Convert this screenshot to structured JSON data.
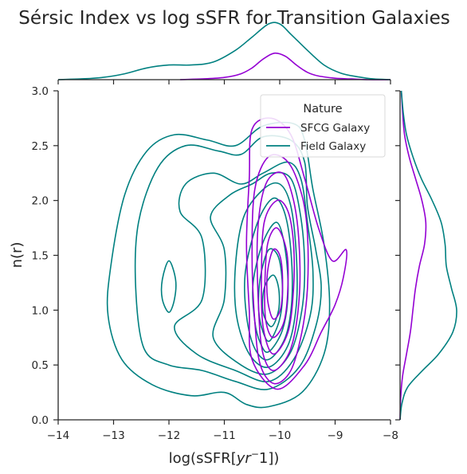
{
  "chart_data": {
    "type": "kde-contour-joint",
    "title": "Sérsic Index vs log sSFR for Transition Galaxies",
    "xlabel_parts": {
      "pre": "log(sSFR[",
      "italic": "yr",
      "sup": "−",
      "post": "1])"
    },
    "ylabel": "n(r)",
    "xlim": [
      -14,
      -8
    ],
    "ylim": [
      0,
      3
    ],
    "xticks": [
      -14,
      -13,
      -12,
      -11,
      -10,
      -9,
      -8
    ],
    "xtick_labels": [
      "−14",
      "−13",
      "−12",
      "−11",
      "−10",
      "−9",
      "−8"
    ],
    "yticks": [
      0.0,
      0.5,
      1.0,
      1.5,
      2.0,
      2.5,
      3.0
    ],
    "ytick_labels": [
      "0.0",
      "0.5",
      "1.0",
      "1.5",
      "2.0",
      "2.5",
      "3.0"
    ],
    "grid": false,
    "legend": {
      "title": "Nature",
      "placement": "top-right"
    },
    "colors": {
      "sfcg": "#9400d3",
      "field": "#008080",
      "axis": "#262626"
    },
    "series": [
      {
        "name": "SFCG Galaxy",
        "color": "#9400d3",
        "contours": [
          [
            [
              -10.05,
              0.28
            ],
            [
              -9.55,
              0.5
            ],
            [
              -9.25,
              0.8
            ],
            [
              -9.0,
              1.05
            ],
            [
              -8.85,
              1.3
            ],
            [
              -8.8,
              1.55
            ],
            [
              -9.05,
              1.45
            ],
            [
              -9.3,
              1.75
            ],
            [
              -9.55,
              2.2
            ],
            [
              -9.8,
              2.6
            ],
            [
              -10.15,
              2.75
            ],
            [
              -10.5,
              2.65
            ],
            [
              -10.55,
              2.2
            ],
            [
              -10.6,
              1.6
            ],
            [
              -10.55,
              1.0
            ],
            [
              -10.5,
              0.55
            ]
          ],
          [
            [
              -10.1,
              0.33
            ],
            [
              -9.8,
              0.45
            ],
            [
              -9.6,
              0.8
            ],
            [
              -9.5,
              1.2
            ],
            [
              -9.5,
              1.7
            ],
            [
              -9.6,
              2.05
            ],
            [
              -9.85,
              2.35
            ],
            [
              -10.2,
              2.4
            ],
            [
              -10.45,
              2.1
            ],
            [
              -10.5,
              1.5
            ],
            [
              -10.45,
              0.9
            ],
            [
              -10.35,
              0.5
            ]
          ],
          [
            [
              -10.1,
              0.45
            ],
            [
              -9.8,
              0.65
            ],
            [
              -9.65,
              1.1
            ],
            [
              -9.65,
              1.6
            ],
            [
              -9.75,
              2.0
            ],
            [
              -9.95,
              2.25
            ],
            [
              -10.25,
              2.15
            ],
            [
              -10.4,
              1.7
            ],
            [
              -10.38,
              1.0
            ],
            [
              -10.3,
              0.6
            ]
          ],
          [
            [
              -10.12,
              0.6
            ],
            [
              -9.85,
              0.8
            ],
            [
              -9.75,
              1.2
            ],
            [
              -9.75,
              1.6
            ],
            [
              -9.85,
              1.9
            ],
            [
              -10.05,
              2.0
            ],
            [
              -10.28,
              1.8
            ],
            [
              -10.33,
              1.3
            ],
            [
              -10.3,
              0.85
            ]
          ],
          [
            [
              -10.12,
              0.75
            ],
            [
              -9.92,
              0.9
            ],
            [
              -9.85,
              1.25
            ],
            [
              -9.88,
              1.55
            ],
            [
              -10.05,
              1.75
            ],
            [
              -10.22,
              1.6
            ],
            [
              -10.27,
              1.2
            ],
            [
              -10.25,
              0.9
            ]
          ],
          [
            [
              -10.12,
              0.92
            ],
            [
              -9.98,
              1.02
            ],
            [
              -9.95,
              1.3
            ],
            [
              -10.0,
              1.5
            ],
            [
              -10.12,
              1.55
            ],
            [
              -10.22,
              1.35
            ],
            [
              -10.22,
              1.1
            ]
          ]
        ]
      },
      {
        "name": "Field Galaxy",
        "color": "#008080",
        "contours": [
          [
            [
              -10.2,
              0.12
            ],
            [
              -9.6,
              0.25
            ],
            [
              -9.2,
              0.6
            ],
            [
              -9.1,
              1.05
            ],
            [
              -9.2,
              1.6
            ],
            [
              -9.4,
              2.1
            ],
            [
              -9.55,
              2.55
            ],
            [
              -9.75,
              2.7
            ],
            [
              -10.3,
              2.68
            ],
            [
              -10.8,
              2.5
            ],
            [
              -11.3,
              2.55
            ],
            [
              -11.9,
              2.6
            ],
            [
              -12.4,
              2.45
            ],
            [
              -12.8,
              2.05
            ],
            [
              -13.05,
              1.4
            ],
            [
              -13.1,
              0.95
            ],
            [
              -12.85,
              0.55
            ],
            [
              -12.3,
              0.32
            ],
            [
              -11.6,
              0.22
            ],
            [
              -11.0,
              0.25
            ],
            [
              -10.6,
              0.14
            ]
          ],
          [
            [
              -10.2,
              0.28
            ],
            [
              -9.65,
              0.48
            ],
            [
              -9.35,
              0.85
            ],
            [
              -9.25,
              1.2
            ],
            [
              -9.35,
              1.55
            ],
            [
              -9.5,
              1.95
            ],
            [
              -9.55,
              2.35
            ],
            [
              -9.8,
              2.55
            ],
            [
              -10.3,
              2.58
            ],
            [
              -10.7,
              2.42
            ],
            [
              -11.1,
              2.45
            ],
            [
              -11.7,
              2.5
            ],
            [
              -12.2,
              2.3
            ],
            [
              -12.55,
              1.8
            ],
            [
              -12.6,
              1.2
            ],
            [
              -12.45,
              0.65
            ],
            [
              -12.0,
              0.5
            ],
            [
              -11.4,
              0.45
            ],
            [
              -10.8,
              0.35
            ]
          ],
          [
            [
              -10.2,
              0.35
            ],
            [
              -9.75,
              0.55
            ],
            [
              -9.45,
              0.95
            ],
            [
              -9.4,
              1.35
            ],
            [
              -9.5,
              1.8
            ],
            [
              -9.62,
              2.2
            ],
            [
              -9.85,
              2.35
            ],
            [
              -10.3,
              2.25
            ],
            [
              -10.7,
              2.15
            ],
            [
              -11.2,
              2.25
            ],
            [
              -11.7,
              2.15
            ],
            [
              -11.8,
              1.9
            ],
            [
              -11.4,
              1.65
            ],
            [
              -11.4,
              1.1
            ],
            [
              -11.9,
              0.85
            ],
            [
              -11.5,
              0.6
            ],
            [
              -10.8,
              0.45
            ]
          ],
          [
            [
              -10.2,
              0.42
            ],
            [
              -9.8,
              0.62
            ],
            [
              -9.6,
              1.0
            ],
            [
              -9.55,
              1.4
            ],
            [
              -9.62,
              1.85
            ],
            [
              -9.8,
              2.2
            ],
            [
              -10.15,
              2.25
            ],
            [
              -10.5,
              2.15
            ],
            [
              -10.9,
              2.05
            ],
            [
              -11.25,
              1.85
            ],
            [
              -11.0,
              1.55
            ],
            [
              -11.0,
              1.1
            ],
            [
              -11.2,
              0.75
            ],
            [
              -10.7,
              0.5
            ]
          ],
          [
            [
              -10.2,
              0.48
            ],
            [
              -9.85,
              0.68
            ],
            [
              -9.7,
              1.05
            ],
            [
              -9.7,
              1.5
            ],
            [
              -9.8,
              1.95
            ],
            [
              -10.0,
              2.15
            ],
            [
              -10.3,
              2.1
            ],
            [
              -10.65,
              1.85
            ],
            [
              -10.8,
              1.4
            ],
            [
              -10.78,
              0.95
            ],
            [
              -10.55,
              0.6
            ]
          ],
          [
            [
              -10.2,
              0.55
            ],
            [
              -9.9,
              0.75
            ],
            [
              -9.78,
              1.1
            ],
            [
              -9.8,
              1.55
            ],
            [
              -9.92,
              1.9
            ],
            [
              -10.12,
              2.02
            ],
            [
              -10.4,
              1.8
            ],
            [
              -10.62,
              1.35
            ],
            [
              -10.6,
              0.95
            ],
            [
              -10.45,
              0.65
            ]
          ],
          [
            [
              -10.2,
              0.62
            ],
            [
              -9.95,
              0.82
            ],
            [
              -9.85,
              1.15
            ],
            [
              -9.9,
              1.55
            ],
            [
              -10.05,
              1.8
            ],
            [
              -10.3,
              1.62
            ],
            [
              -10.48,
              1.25
            ],
            [
              -10.45,
              0.9
            ],
            [
              -10.35,
              0.7
            ]
          ],
          [
            [
              -10.18,
              0.72
            ],
            [
              -10.0,
              0.92
            ],
            [
              -9.95,
              1.2
            ],
            [
              -10.02,
              1.48
            ],
            [
              -10.2,
              1.55
            ],
            [
              -10.35,
              1.3
            ],
            [
              -10.38,
              1.0
            ],
            [
              -10.3,
              0.8
            ]
          ],
          [
            [
              -10.15,
              0.85
            ],
            [
              -10.02,
              1.0
            ],
            [
              -10.02,
              1.2
            ],
            [
              -10.12,
              1.32
            ],
            [
              -10.28,
              1.2
            ],
            [
              -10.3,
              0.98
            ]
          ],
          [
            [
              -12.0,
              0.98
            ],
            [
              -11.9,
              1.1
            ],
            [
              -11.88,
              1.28
            ],
            [
              -12.0,
              1.45
            ],
            [
              -12.12,
              1.28
            ],
            [
              -12.12,
              1.1
            ]
          ]
        ]
      }
    ],
    "marginal_x": [
      {
        "name": "SFCG Galaxy",
        "x": [
          -11.8,
          -11.4,
          -11.0,
          -10.7,
          -10.5,
          -10.3,
          -10.1,
          -9.9,
          -9.7,
          -9.5,
          -9.3,
          -9.0,
          -8.7,
          -8.4,
          -8.0
        ],
        "density": [
          0.0,
          0.01,
          0.03,
          0.08,
          0.16,
          0.28,
          0.36,
          0.32,
          0.2,
          0.1,
          0.05,
          0.02,
          0.01,
          0.0,
          0.0
        ]
      },
      {
        "name": "Field Galaxy",
        "x": [
          -14.0,
          -13.6,
          -13.2,
          -12.8,
          -12.4,
          -12.0,
          -11.6,
          -11.2,
          -10.8,
          -10.5,
          -10.2,
          -10.0,
          -9.8,
          -9.5,
          -9.2,
          -8.9,
          -8.6,
          -8.3,
          -8.0
        ],
        "density": [
          0.0,
          0.01,
          0.03,
          0.08,
          0.16,
          0.2,
          0.2,
          0.24,
          0.4,
          0.58,
          0.76,
          0.76,
          0.62,
          0.4,
          0.2,
          0.09,
          0.04,
          0.01,
          0.0
        ]
      }
    ],
    "marginal_y": [
      {
        "name": "SFCG Galaxy",
        "y": [
          0.0,
          0.2,
          0.4,
          0.6,
          0.8,
          1.0,
          1.2,
          1.4,
          1.6,
          1.8,
          2.0,
          2.2,
          2.4,
          2.6,
          2.8,
          3.0
        ],
        "density": [
          0.0,
          0.01,
          0.04,
          0.1,
          0.16,
          0.2,
          0.24,
          0.3,
          0.38,
          0.4,
          0.34,
          0.24,
          0.14,
          0.07,
          0.04,
          0.02
        ]
      },
      {
        "name": "Field Galaxy",
        "y": [
          0.0,
          0.15,
          0.3,
          0.45,
          0.6,
          0.8,
          1.0,
          1.2,
          1.4,
          1.6,
          1.8,
          2.0,
          2.2,
          2.4,
          2.6,
          2.8,
          3.0
        ],
        "density": [
          0.0,
          0.03,
          0.12,
          0.35,
          0.6,
          0.82,
          0.88,
          0.8,
          0.72,
          0.7,
          0.64,
          0.5,
          0.33,
          0.2,
          0.1,
          0.05,
          0.02
        ]
      }
    ]
  }
}
